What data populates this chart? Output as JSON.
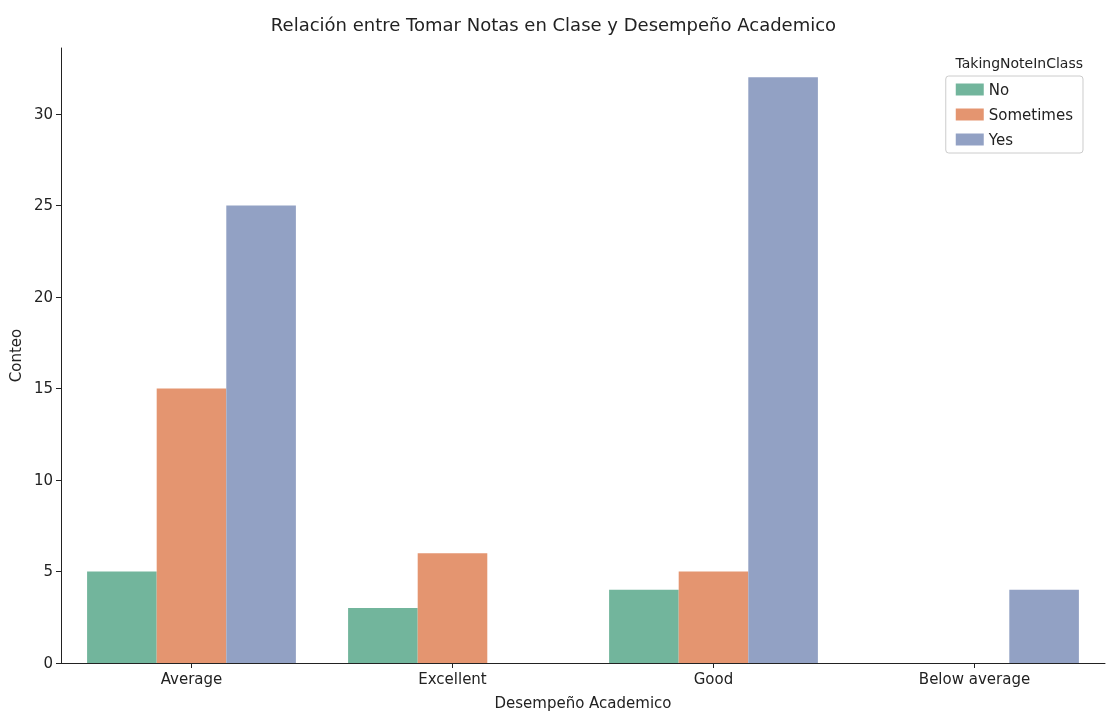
{
  "chart_data": {
    "type": "bar",
    "title": "Relación entre Tomar Notas en Clase y Desempeño Academico",
    "xlabel": "Desempeño Academico",
    "ylabel": "Conteo",
    "legend_title": "TakingNoteInClass",
    "categories": [
      "Average",
      "Excellent",
      "Good",
      "Below average"
    ],
    "series": [
      {
        "name": "No",
        "color": "#72b59c",
        "values": [
          5,
          3,
          4,
          null
        ]
      },
      {
        "name": "Sometimes",
        "color": "#e49570",
        "values": [
          15,
          6,
          5,
          null
        ]
      },
      {
        "name": "Yes",
        "color": "#92a1c4",
        "values": [
          25,
          null,
          32,
          4
        ]
      }
    ],
    "ylim": [
      0,
      33.6
    ],
    "yticks": [
      0,
      5,
      10,
      15,
      20,
      25,
      30
    ],
    "grid": false,
    "legend": "top right"
  }
}
